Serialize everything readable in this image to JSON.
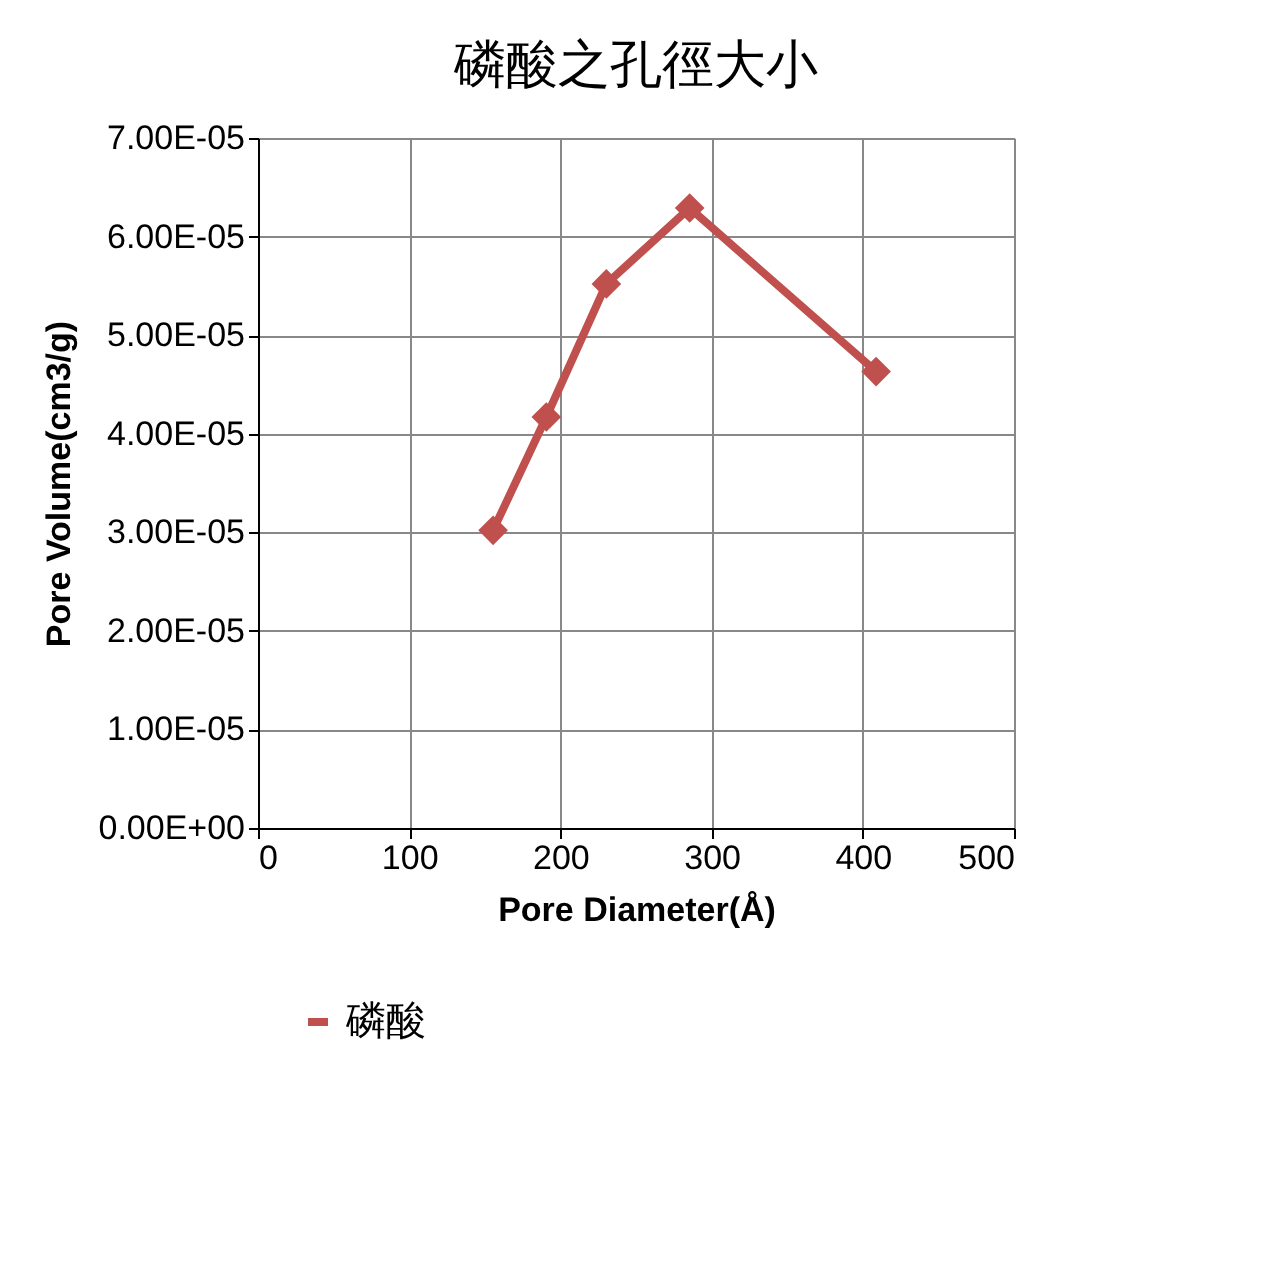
{
  "chart_data": {
    "type": "line",
    "title": "磷酸之孔徑大小",
    "xlabel": "Pore Diameter(Å)",
    "ylabel": "Pore Volume(cm3/g)",
    "x": [
      155.5,
      190.7,
      230.4,
      285.5,
      408.8
    ],
    "series": [
      {
        "name": "磷酸",
        "color": "#c0504d",
        "values": [
          3.02e-05,
          4.17e-05,
          5.52e-05,
          6.29e-05,
          4.63e-05
        ]
      }
    ],
    "xlim": [
      0,
      500
    ],
    "xticks": [
      0,
      100,
      200,
      300,
      400,
      500
    ],
    "ylim": [
      0,
      7e-05
    ],
    "yticks": [
      {
        "value": 0,
        "label": "0.00E+00"
      },
      {
        "value": 1e-05,
        "label": "1.00E-05"
      },
      {
        "value": 2e-05,
        "label": "2.00E-05"
      },
      {
        "value": 3e-05,
        "label": "3.00E-05"
      },
      {
        "value": 4e-05,
        "label": "4.00E-05"
      },
      {
        "value": 5e-05,
        "label": "5.00E-05"
      },
      {
        "value": 6e-05,
        "label": "6.00E-05"
      },
      {
        "value": 7e-05,
        "label": "7.00E-05"
      }
    ],
    "grid": true,
    "legend": "bottom",
    "marker": "diamond",
    "line_style": "solid"
  }
}
